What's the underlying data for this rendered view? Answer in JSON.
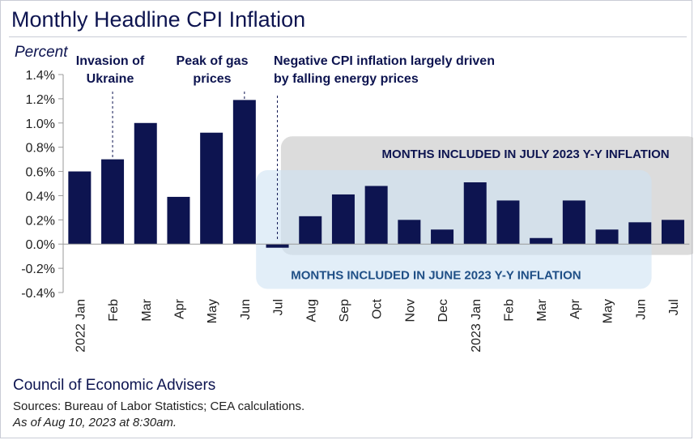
{
  "header": {
    "title": "Monthly Headline CPI Inflation"
  },
  "footer": {
    "org": "Council of Economic Advisers",
    "sources": "Sources: Bureau of Labor Statistics; CEA calculations.",
    "as_of": "As of Aug 10, 2023 at 8:30am."
  },
  "colors": {
    "bar": "#0d1450",
    "june_window": "#cfe2f4",
    "july_window": "#bfbfbf",
    "annotation": "#0d1450"
  },
  "chart_data": {
    "type": "bar",
    "ylabel": "Percent",
    "ylim": [
      -0.4,
      1.4
    ],
    "yticks": [
      -0.4,
      -0.2,
      0.0,
      0.2,
      0.4,
      0.6,
      0.8,
      1.0,
      1.2,
      1.4
    ],
    "ytick_labels": [
      "-0.4%",
      "-0.2%",
      "0.0%",
      "0.2%",
      "0.4%",
      "0.6%",
      "0.8%",
      "1.0%",
      "1.2%",
      "1.4%"
    ],
    "categories": [
      "2022 Jan",
      "Feb",
      "Mar",
      "Apr",
      "May",
      "Jun",
      "Jul",
      "Aug",
      "Sep",
      "Oct",
      "Nov",
      "Dec",
      "2023 Jan",
      "Feb",
      "Mar",
      "Apr",
      "May",
      "Jun",
      "Jul"
    ],
    "values": [
      0.6,
      0.7,
      1.0,
      0.39,
      0.92,
      1.19,
      -0.03,
      0.23,
      0.41,
      0.48,
      0.2,
      0.12,
      0.51,
      0.36,
      0.05,
      0.36,
      0.12,
      0.18,
      0.2
    ],
    "grid": false,
    "annotations": [
      {
        "text": [
          "Invasion of",
          "Ukraine"
        ],
        "category_index": 1
      },
      {
        "text": [
          "Peak of gas",
          "prices"
        ],
        "category_index": 5
      },
      {
        "text": [
          "Negative CPI inflation largely driven",
          "by falling energy prices"
        ],
        "category_index": 6
      }
    ],
    "windows": [
      {
        "label": "MONTHS INCLUDED IN JULY 2023 Y-Y INFLATION",
        "from_index": 7,
        "to_index": 18
      },
      {
        "label": "MONTHS INCLUDED IN JUNE 2023 Y-Y INFLATION",
        "from_index": 6,
        "to_index": 17
      }
    ]
  }
}
